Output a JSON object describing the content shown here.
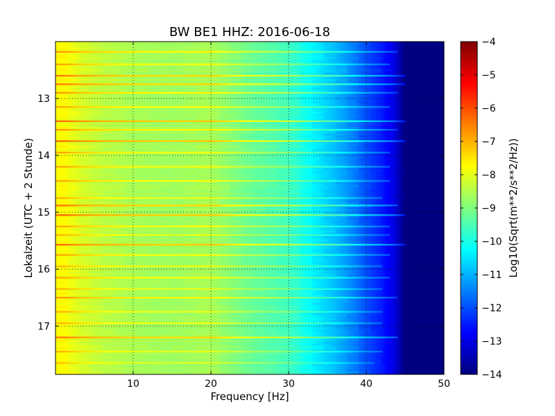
{
  "chart_data": {
    "type": "heatmap",
    "title": "BW BE1 HHZ: 2016-06-18",
    "xlabel": "Frequency [Hz]",
    "ylabel": "Lokalzeit (UTC + 2 Stunde)",
    "xlim": [
      0,
      50
    ],
    "ylim": [
      12.0,
      17.85
    ],
    "y_inverted": true,
    "x_ticks": [
      10,
      20,
      30,
      40,
      50
    ],
    "x_tick_labels": [
      "10",
      "20",
      "30",
      "40",
      "50"
    ],
    "y_ticks": [
      13,
      14,
      15,
      16,
      17
    ],
    "y_tick_labels": [
      "13",
      "14",
      "15",
      "16",
      "17"
    ],
    "grid": true,
    "colorbar": {
      "label": "Log10(Sqrt(m**2/s**2/Hz))",
      "colormap": "jet",
      "range": [
        -14,
        -4
      ],
      "ticks": [
        -4,
        -5,
        -6,
        -7,
        -8,
        -9,
        -10,
        -11,
        -12,
        -13,
        -14
      ],
      "tick_labels": [
        "−4",
        "−5",
        "−6",
        "−7",
        "−8",
        "−9",
        "−10",
        "−11",
        "−12",
        "−13",
        "−14"
      ]
    },
    "spectral_profile": [
      {
        "freq": 0,
        "value": -7.8
      },
      {
        "freq": 1,
        "value": -7.7
      },
      {
        "freq": 3,
        "value": -8.1
      },
      {
        "freq": 6,
        "value": -8.4
      },
      {
        "freq": 10,
        "value": -8.6
      },
      {
        "freq": 15,
        "value": -8.7
      },
      {
        "freq": 20,
        "value": -8.6
      },
      {
        "freq": 25,
        "value": -9.2
      },
      {
        "freq": 30,
        "value": -9.6
      },
      {
        "freq": 33,
        "value": -10.3
      },
      {
        "freq": 36,
        "value": -10.9
      },
      {
        "freq": 38,
        "value": -11.4
      },
      {
        "freq": 40,
        "value": -12.0
      },
      {
        "freq": 42,
        "value": -12.5
      },
      {
        "freq": 43.5,
        "value": -13.0
      },
      {
        "freq": 45,
        "value": -14.0
      },
      {
        "freq": 50,
        "value": -14.0
      }
    ],
    "horizontal_bands": [
      {
        "time": 12.18,
        "strength": 0.7,
        "extent_hz": 44
      },
      {
        "time": 12.4,
        "strength": 0.6,
        "extent_hz": 43
      },
      {
        "time": 12.6,
        "strength": 0.9,
        "extent_hz": 45
      },
      {
        "time": 12.75,
        "strength": 0.9,
        "extent_hz": 45
      },
      {
        "time": 12.9,
        "strength": 0.7,
        "extent_hz": 44
      },
      {
        "time": 13.15,
        "strength": 0.6,
        "extent_hz": 43
      },
      {
        "time": 13.4,
        "strength": 1.0,
        "extent_hz": 45
      },
      {
        "time": 13.55,
        "strength": 0.7,
        "extent_hz": 44
      },
      {
        "time": 13.75,
        "strength": 1.0,
        "extent_hz": 45
      },
      {
        "time": 13.95,
        "strength": 0.6,
        "extent_hz": 43
      },
      {
        "time": 14.2,
        "strength": 0.6,
        "extent_hz": 43
      },
      {
        "time": 14.45,
        "strength": 0.6,
        "extent_hz": 43
      },
      {
        "time": 14.75,
        "strength": 0.5,
        "extent_hz": 42
      },
      {
        "time": 14.88,
        "strength": 0.9,
        "extent_hz": 44
      },
      {
        "time": 15.05,
        "strength": 1.0,
        "extent_hz": 45
      },
      {
        "time": 15.25,
        "strength": 0.6,
        "extent_hz": 43
      },
      {
        "time": 15.4,
        "strength": 0.5,
        "extent_hz": 43
      },
      {
        "time": 15.57,
        "strength": 1.0,
        "extent_hz": 45
      },
      {
        "time": 15.75,
        "strength": 0.6,
        "extent_hz": 43
      },
      {
        "time": 15.95,
        "strength": 0.5,
        "extent_hz": 42
      },
      {
        "time": 16.15,
        "strength": 0.6,
        "extent_hz": 43
      },
      {
        "time": 16.35,
        "strength": 0.5,
        "extent_hz": 42
      },
      {
        "time": 16.5,
        "strength": 0.7,
        "extent_hz": 44
      },
      {
        "time": 16.75,
        "strength": 0.5,
        "extent_hz": 42
      },
      {
        "time": 16.95,
        "strength": 0.5,
        "extent_hz": 42
      },
      {
        "time": 17.2,
        "strength": 0.9,
        "extent_hz": 44
      },
      {
        "time": 17.45,
        "strength": 0.5,
        "extent_hz": 42
      },
      {
        "time": 17.65,
        "strength": 0.4,
        "extent_hz": 41
      }
    ]
  }
}
